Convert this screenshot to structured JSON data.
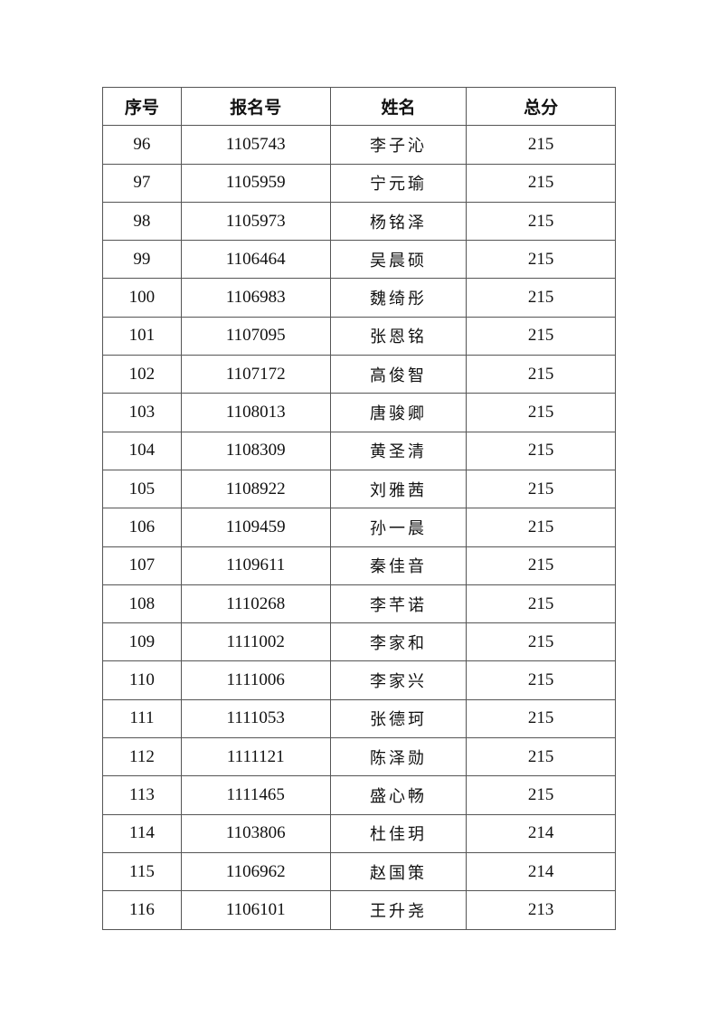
{
  "table": {
    "headers": [
      "序号",
      "报名号",
      "姓名",
      "总分"
    ],
    "rows": [
      [
        "96",
        "1105743",
        "李子沁",
        "215"
      ],
      [
        "97",
        "1105959",
        "宁元瑜",
        "215"
      ],
      [
        "98",
        "1105973",
        "杨铭泽",
        "215"
      ],
      [
        "99",
        "1106464",
        "吴晨硕",
        "215"
      ],
      [
        "100",
        "1106983",
        "魏绮彤",
        "215"
      ],
      [
        "101",
        "1107095",
        "张恩铭",
        "215"
      ],
      [
        "102",
        "1107172",
        "高俊智",
        "215"
      ],
      [
        "103",
        "1108013",
        "唐骏卿",
        "215"
      ],
      [
        "104",
        "1108309",
        "黄圣清",
        "215"
      ],
      [
        "105",
        "1108922",
        "刘雅茜",
        "215"
      ],
      [
        "106",
        "1109459",
        "孙一晨",
        "215"
      ],
      [
        "107",
        "1109611",
        "秦佳音",
        "215"
      ],
      [
        "108",
        "1110268",
        "李芊诺",
        "215"
      ],
      [
        "109",
        "1111002",
        "李家和",
        "215"
      ],
      [
        "110",
        "1111006",
        "李家兴",
        "215"
      ],
      [
        "111",
        "1111053",
        "张德珂",
        "215"
      ],
      [
        "112",
        "1111121",
        "陈泽勋",
        "215"
      ],
      [
        "113",
        "1111465",
        "盛心畅",
        "215"
      ],
      [
        "114",
        "1103806",
        "杜佳玥",
        "214"
      ],
      [
        "115",
        "1106962",
        "赵国策",
        "214"
      ],
      [
        "116",
        "1106101",
        "王升尧",
        "213"
      ]
    ]
  }
}
